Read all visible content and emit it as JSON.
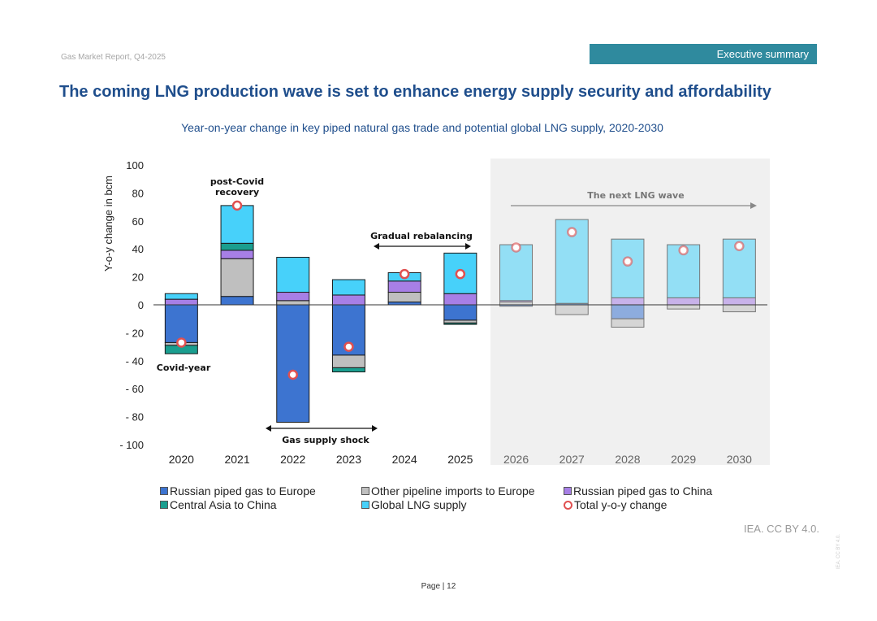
{
  "header": {
    "report": "Gas Market Report, Q4-2025",
    "section": "Executive summary"
  },
  "title": "The coming LNG production wave is set to enhance energy supply security and affordability",
  "footer": {
    "credit": "IEA. CC BY 4.0.",
    "vertical_credit": "IEA. CC BY 4.0.",
    "page": "Page | 12"
  },
  "chart_data": {
    "type": "bar",
    "stacked": true,
    "title": "Year-on-year change in key piped natural gas trade and potential global LNG supply, 2020-2030",
    "xlabel": "",
    "ylabel": "Y-o-y change in bcm",
    "ylim": [
      -100,
      100
    ],
    "yticks": [
      100,
      80,
      60,
      40,
      20,
      0,
      -20,
      -40,
      -60,
      -80,
      -100
    ],
    "ytick_labels": [
      "100",
      "80",
      "60",
      "40",
      "20",
      "0",
      "- 20",
      "- 40",
      "- 60",
      "- 80",
      "- 100"
    ],
    "categories": [
      "2020",
      "2021",
      "2022",
      "2023",
      "2024",
      "2025",
      "2026",
      "2027",
      "2028",
      "2029",
      "2030"
    ],
    "projection_start": "2026",
    "series": [
      {
        "name": "Russian piped gas to Europe",
        "color": "#3d74d0",
        "values": [
          -27,
          6,
          -84,
          -36,
          2,
          -11,
          -1,
          1,
          -10,
          0,
          0
        ]
      },
      {
        "name": "Other pipeline imports to Europe",
        "color": "#bfbfbf",
        "values": [
          -2,
          27,
          3,
          -9,
          7,
          -2,
          2,
          -7,
          -6,
          -3,
          -5
        ]
      },
      {
        "name": "Russian piped gas to China",
        "color": "#a77fe6",
        "values": [
          4,
          6,
          6,
          7,
          8,
          8,
          1,
          0,
          5,
          5,
          5
        ]
      },
      {
        "name": "Central Asia to China",
        "color": "#1a9e8f",
        "values": [
          -6,
          5,
          0,
          -3,
          0,
          -1,
          0,
          0,
          0,
          0,
          0
        ]
      },
      {
        "name": "Global LNG supply",
        "color": "#47d1fa",
        "values": [
          4,
          27,
          25,
          11,
          6,
          29,
          40,
          60,
          42,
          38,
          42
        ]
      }
    ],
    "total": {
      "name": "Total y-o-y change",
      "color": "#e05050",
      "values": [
        -27,
        71,
        -50,
        -30,
        22,
        22,
        41,
        52,
        31,
        39,
        42
      ]
    },
    "annotations": [
      {
        "text": "post-Covid recovery",
        "year": "2021"
      },
      {
        "text": "Covid-year",
        "year": "2020"
      },
      {
        "text": "Gas supply shock",
        "span": [
          "2022",
          "2023"
        ]
      },
      {
        "text": "Gradual rebalancing",
        "span": [
          "2024",
          "2025"
        ]
      },
      {
        "text": "The next LNG wave",
        "span": [
          "2026",
          "2030"
        ]
      }
    ],
    "legend_position": "bottom"
  }
}
